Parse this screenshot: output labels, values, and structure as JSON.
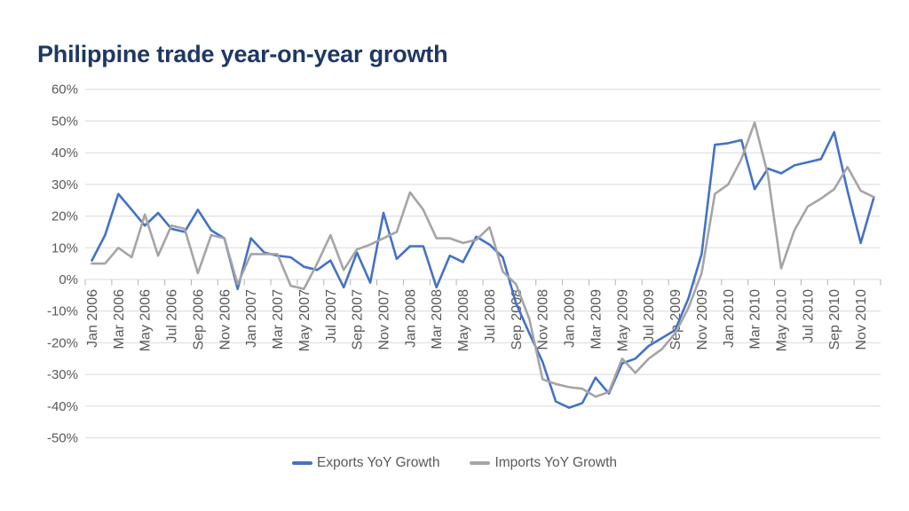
{
  "colors": {
    "background": "#ffffff",
    "title_text": "#1f3864",
    "axis_text": "#595959",
    "gridline": "#d9d9d9",
    "tick": "#b3b3b3",
    "exports_line": "#4472c4",
    "imports_line": "#a5a5a5"
  },
  "chart_data": {
    "type": "line",
    "title": "Philippine trade year-on-year growth",
    "xlabel": "",
    "ylabel": "",
    "ylim": [
      -50,
      60
    ],
    "ytick_step": 10,
    "ytick_format": "percent",
    "grid": "horizontal",
    "x_label_every": 2,
    "x_label_rotation": -90,
    "legend_position": "bottom",
    "categories": [
      "Jan 2006",
      "Feb 2006",
      "Mar 2006",
      "Apr 2006",
      "May 2006",
      "Jun 2006",
      "Jul 2006",
      "Aug 2006",
      "Sep 2006",
      "Oct 2006",
      "Nov 2006",
      "Dec 2006",
      "Jan 2007",
      "Feb 2007",
      "Mar 2007",
      "Apr 2007",
      "May 2007",
      "Jun 2007",
      "Jul 2007",
      "Aug 2007",
      "Sep 2007",
      "Oct 2007",
      "Nov 2007",
      "Dec 2007",
      "Jan 2008",
      "Feb 2008",
      "Mar 2008",
      "Apr 2008",
      "May 2008",
      "Jun 2008",
      "Jul 2008",
      "Aug 2008",
      "Sep 2008",
      "Oct 2008",
      "Nov 2008",
      "Dec 2008",
      "Jan 2009",
      "Feb 2009",
      "Mar 2009",
      "Apr 2009",
      "May 2009",
      "Jun 2009",
      "Jul 2009",
      "Aug 2009",
      "Sep 2009",
      "Oct 2009",
      "Nov 2009",
      "Dec 2009",
      "Jan 2010",
      "Feb 2010",
      "Mar 2010",
      "Apr 2010",
      "May 2010",
      "Jun 2010",
      "Jul 2010",
      "Aug 2010",
      "Sep 2010",
      "Oct 2010",
      "Nov 2010",
      "Dec 2010"
    ],
    "series": [
      {
        "name": "Exports YoY Growth",
        "color": "#4472c4",
        "values": [
          6,
          14,
          27,
          22,
          17,
          21,
          16,
          15,
          22,
          15.5,
          13,
          -3,
          13,
          8.5,
          7.5,
          7,
          4,
          3,
          6,
          -2.5,
          8.5,
          -1,
          21,
          6.5,
          10.5,
          10.5,
          -2.5,
          7.5,
          5.5,
          13.5,
          11,
          7,
          -7.5,
          -17,
          -26,
          -38.5,
          -40.5,
          -39,
          -31,
          -36,
          -26.5,
          -25,
          -21,
          -18.5,
          -16,
          -6,
          8,
          42.5,
          43,
          44,
          28.5,
          35,
          33.5,
          36,
          37,
          38,
          46.5,
          28,
          11.5,
          26
        ]
      },
      {
        "name": "Imports YoY Growth",
        "color": "#a5a5a5",
        "values": [
          5,
          5,
          10,
          7,
          20.5,
          7.5,
          17,
          16,
          2,
          14,
          13,
          -1.5,
          8,
          8,
          8,
          -2,
          -3,
          5,
          14,
          3,
          9.5,
          11,
          13,
          15,
          27.5,
          22,
          13,
          13,
          11.5,
          12.5,
          16.5,
          2.5,
          -1.5,
          -12.5,
          -31.5,
          -33,
          -34,
          -34.5,
          -37,
          -35.5,
          -25,
          -29.5,
          -25,
          -22,
          -17,
          -9,
          2,
          27,
          30,
          38,
          49.5,
          33,
          3.5,
          15.5,
          23,
          25.5,
          28.5,
          35.5,
          28,
          26
        ]
      }
    ]
  }
}
